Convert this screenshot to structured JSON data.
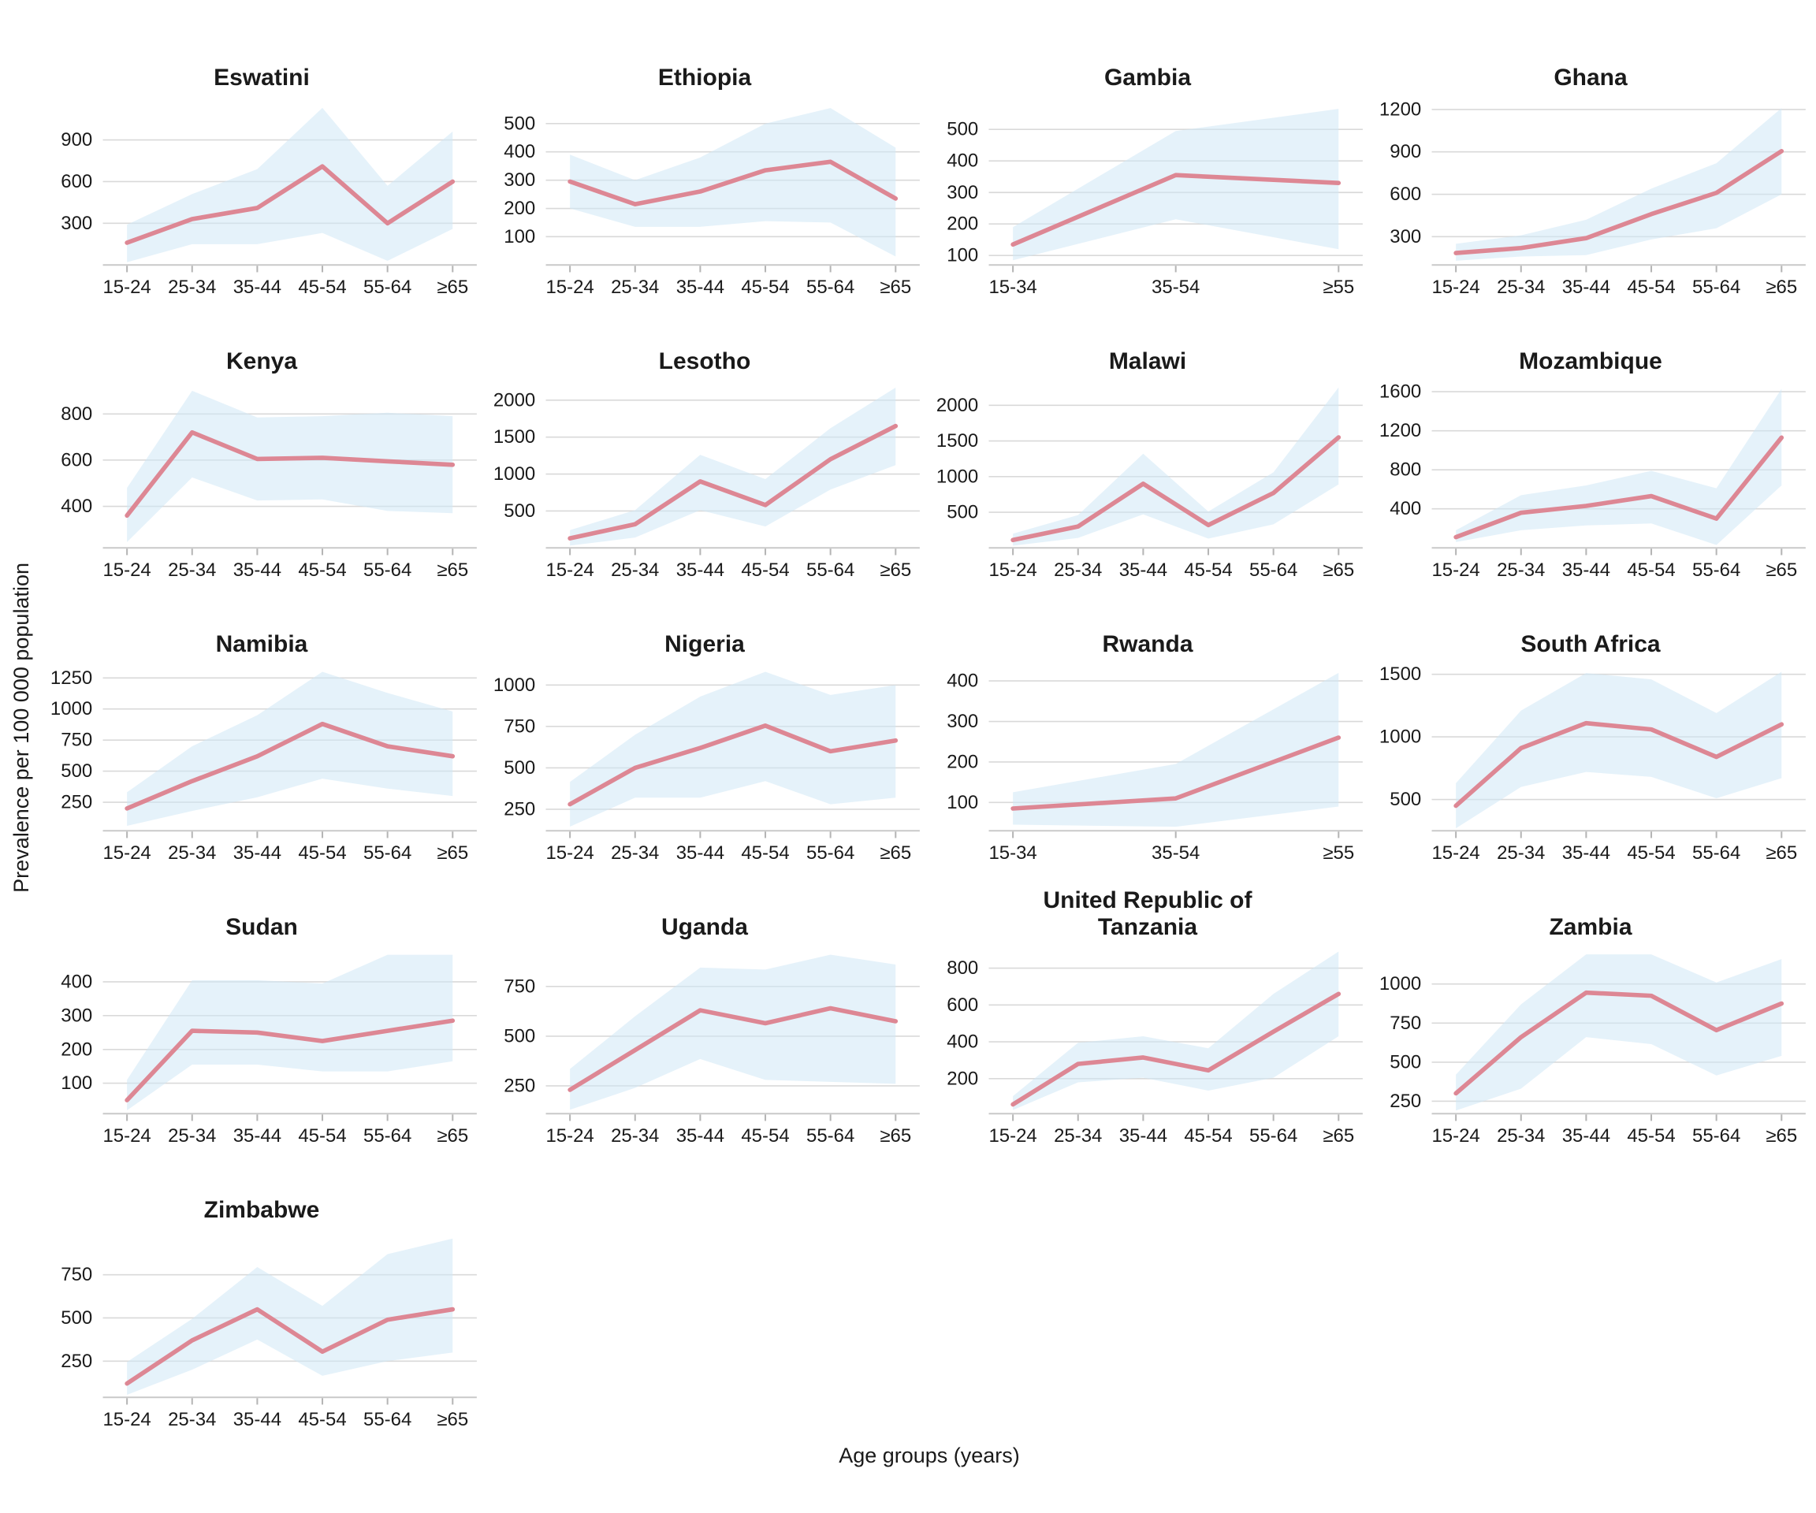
{
  "figure": {
    "ylabel": "Prevalence per 100 000 population",
    "xlabel": "Age groups (years)"
  },
  "colors": {
    "line": "#dd8794",
    "band": "#cfe7f6",
    "grid": "#d9d9d9",
    "axis": "#c9c9c9",
    "tick": "#b5b5b5",
    "text": "#1a1a1a"
  },
  "chart_data": [
    {
      "type": "line",
      "title": "Eswatini",
      "categories": [
        "15-24",
        "25-34",
        "35-44",
        "45-54",
        "55-64",
        "≥65"
      ],
      "values": [
        160,
        330,
        410,
        710,
        300,
        600
      ],
      "band_lower": [
        20,
        150,
        150,
        230,
        30,
        260
      ],
      "band_upper": [
        290,
        510,
        690,
        1130,
        570,
        960
      ],
      "yticks": [
        300,
        600,
        900
      ],
      "ylim": [
        0,
        1180
      ]
    },
    {
      "type": "line",
      "title": "Ethiopia",
      "categories": [
        "15-24",
        "25-34",
        "35-44",
        "45-54",
        "55-64",
        "≥65"
      ],
      "values": [
        295,
        215,
        260,
        335,
        365,
        235
      ],
      "band_lower": [
        200,
        135,
        135,
        155,
        150,
        30
      ],
      "band_upper": [
        390,
        300,
        380,
        500,
        555,
        415
      ],
      "yticks": [
        100,
        200,
        300,
        400,
        500
      ],
      "ylim": [
        0,
        580
      ]
    },
    {
      "type": "line",
      "title": "Gambia",
      "categories": [
        "15-34",
        "35-54",
        "≥55"
      ],
      "values": [
        135,
        355,
        330
      ],
      "band_lower": [
        85,
        215,
        120
      ],
      "band_upper": [
        190,
        495,
        565
      ],
      "yticks": [
        100,
        200,
        300,
        400,
        500
      ],
      "ylim": [
        70,
        590
      ]
    },
    {
      "type": "line",
      "title": "Ghana",
      "categories": [
        "15-24",
        "25-34",
        "35-44",
        "45-54",
        "55-64",
        "≥65"
      ],
      "values": [
        185,
        220,
        290,
        460,
        610,
        905
      ],
      "band_lower": [
        130,
        160,
        170,
        280,
        360,
        600
      ],
      "band_upper": [
        250,
        310,
        420,
        640,
        820,
        1210
      ],
      "yticks": [
        300,
        600,
        900,
        1200
      ],
      "ylim": [
        100,
        1260
      ]
    },
    {
      "type": "line",
      "title": "Kenya",
      "categories": [
        "15-24",
        "25-34",
        "35-44",
        "45-54",
        "55-64",
        "≥65"
      ],
      "values": [
        360,
        720,
        605,
        610,
        595,
        580
      ],
      "band_lower": [
        245,
        525,
        425,
        430,
        380,
        370
      ],
      "band_upper": [
        480,
        900,
        785,
        790,
        805,
        790
      ],
      "yticks": [
        400,
        600,
        800
      ],
      "ylim": [
        220,
        930
      ]
    },
    {
      "type": "line",
      "title": "Lesotho",
      "categories": [
        "15-24",
        "25-34",
        "35-44",
        "45-54",
        "55-64",
        "≥65"
      ],
      "values": [
        130,
        320,
        900,
        580,
        1200,
        1650
      ],
      "band_lower": [
        30,
        140,
        510,
        290,
        790,
        1120
      ],
      "band_upper": [
        240,
        510,
        1260,
        930,
        1620,
        2170
      ],
      "yticks": [
        500,
        1000,
        1500,
        2000
      ],
      "ylim": [
        0,
        2220
      ]
    },
    {
      "type": "line",
      "title": "Malawi",
      "categories": [
        "15-24",
        "25-34",
        "35-44",
        "45-54",
        "55-64",
        "≥65"
      ],
      "values": [
        110,
        300,
        900,
        320,
        770,
        1550
      ],
      "band_lower": [
        30,
        140,
        470,
        130,
        330,
        890
      ],
      "band_upper": [
        200,
        460,
        1320,
        510,
        1060,
        2250
      ],
      "yticks": [
        500,
        1000,
        1500,
        2000
      ],
      "ylim": [
        0,
        2300
      ]
    },
    {
      "type": "line",
      "title": "Mozambique",
      "categories": [
        "15-24",
        "25-34",
        "35-44",
        "45-54",
        "55-64",
        "≥65"
      ],
      "values": [
        110,
        360,
        430,
        530,
        300,
        1130
      ],
      "band_lower": [
        60,
        180,
        230,
        250,
        30,
        640
      ],
      "band_upper": [
        180,
        540,
        640,
        790,
        610,
        1630
      ],
      "yticks": [
        400,
        800,
        1200,
        1600
      ],
      "ylim": [
        0,
        1680
      ]
    },
    {
      "type": "line",
      "title": "Namibia",
      "categories": [
        "15-24",
        "25-34",
        "35-44",
        "45-54",
        "55-64",
        "≥65"
      ],
      "values": [
        200,
        420,
        620,
        880,
        700,
        620
      ],
      "band_lower": [
        60,
        180,
        290,
        440,
        360,
        300
      ],
      "band_upper": [
        330,
        700,
        950,
        1300,
        1130,
        980
      ],
      "yticks": [
        250,
        500,
        750,
        1000,
        1250
      ],
      "ylim": [
        20,
        1340
      ]
    },
    {
      "type": "line",
      "title": "Nigeria",
      "categories": [
        "15-24",
        "25-34",
        "35-44",
        "45-54",
        "55-64",
        "≥65"
      ],
      "values": [
        280,
        500,
        620,
        755,
        600,
        665
      ],
      "band_lower": [
        145,
        320,
        320,
        420,
        280,
        320
      ],
      "band_upper": [
        415,
        700,
        930,
        1080,
        940,
        1000
      ],
      "yticks": [
        250,
        500,
        750,
        1000
      ],
      "ylim": [
        120,
        1110
      ]
    },
    {
      "type": "line",
      "title": "Rwanda",
      "categories": [
        "15-34",
        "35-54",
        "≥55"
      ],
      "values": [
        85,
        110,
        260
      ],
      "band_lower": [
        45,
        40,
        90
      ],
      "band_upper": [
        125,
        195,
        420
      ],
      "yticks": [
        100,
        200,
        300,
        400
      ],
      "ylim": [
        30,
        435
      ]
    },
    {
      "type": "line",
      "title": "South Africa",
      "categories": [
        "15-24",
        "25-34",
        "35-44",
        "45-54",
        "55-64",
        "≥65"
      ],
      "values": [
        450,
        910,
        1110,
        1060,
        840,
        1100
      ],
      "band_lower": [
        270,
        600,
        720,
        680,
        510,
        670
      ],
      "band_upper": [
        630,
        1210,
        1510,
        1460,
        1190,
        1520
      ],
      "yticks": [
        500,
        1000,
        1500
      ],
      "ylim": [
        250,
        1560
      ]
    },
    {
      "type": "line",
      "title": "Sudan",
      "categories": [
        "15-24",
        "25-34",
        "35-44",
        "45-54",
        "55-64",
        "≥65"
      ],
      "values": [
        50,
        255,
        250,
        225,
        255,
        285
      ],
      "band_lower": [
        20,
        155,
        155,
        135,
        135,
        165
      ],
      "band_upper": [
        110,
        405,
        405,
        395,
        480,
        480
      ],
      "yticks": [
        100,
        200,
        300,
        400
      ],
      "ylim": [
        10,
        495
      ]
    },
    {
      "type": "line",
      "title": "Uganda",
      "categories": [
        "15-24",
        "25-34",
        "35-44",
        "45-54",
        "55-64",
        "≥65"
      ],
      "values": [
        230,
        430,
        630,
        565,
        640,
        575
      ],
      "band_lower": [
        130,
        240,
        385,
        280,
        270,
        260
      ],
      "band_upper": [
        335,
        600,
        845,
        835,
        910,
        860
      ],
      "yticks": [
        250,
        500,
        750
      ],
      "ylim": [
        110,
        935
      ]
    },
    {
      "type": "line",
      "title": "United Republic of Tanzania",
      "categories": [
        "15-24",
        "25-34",
        "35-44",
        "45-54",
        "55-64",
        "≥65"
      ],
      "values": [
        60,
        280,
        315,
        245,
        455,
        660
      ],
      "band_lower": [
        30,
        180,
        205,
        135,
        205,
        430
      ],
      "band_upper": [
        105,
        395,
        430,
        365,
        660,
        890
      ],
      "yticks": [
        200,
        400,
        600,
        800
      ],
      "ylim": [
        10,
        900
      ]
    },
    {
      "type": "line",
      "title": "Zambia",
      "categories": [
        "15-24",
        "25-34",
        "35-44",
        "45-54",
        "55-64",
        "≥65"
      ],
      "values": [
        300,
        660,
        945,
        925,
        705,
        875
      ],
      "band_lower": [
        190,
        330,
        660,
        615,
        415,
        540
      ],
      "band_upper": [
        420,
        870,
        1190,
        1190,
        1010,
        1160
      ],
      "yticks": [
        250,
        500,
        750,
        1000
      ],
      "ylim": [
        170,
        1220
      ]
    },
    {
      "type": "line",
      "title": "Zimbabwe",
      "categories": [
        "15-24",
        "25-34",
        "35-44",
        "45-54",
        "55-64",
        "≥65"
      ],
      "values": [
        120,
        370,
        550,
        305,
        490,
        550
      ],
      "band_lower": [
        55,
        200,
        375,
        165,
        250,
        300
      ],
      "band_upper": [
        245,
        495,
        795,
        570,
        870,
        960
      ],
      "yticks": [
        250,
        500,
        750
      ],
      "ylim": [
        40,
        990
      ]
    }
  ]
}
